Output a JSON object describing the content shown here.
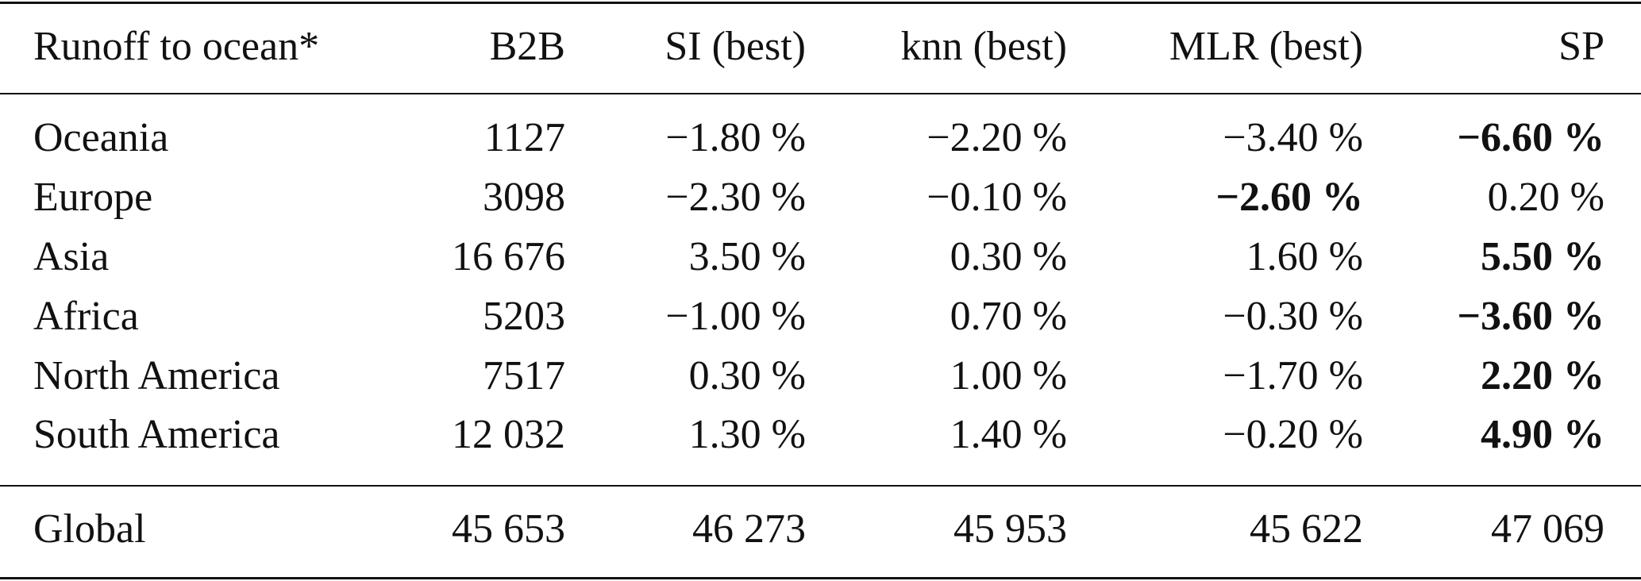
{
  "table": {
    "header": [
      "Runoff to ocean*",
      "B2B",
      "SI (best)",
      "knn (best)",
      "MLR (best)",
      "SP"
    ],
    "rows": [
      [
        "Oceania",
        "1127",
        "−1.80 %",
        "−2.20 %",
        "−3.40 %",
        {
          "text": "−6.60 %",
          "bold": true
        }
      ],
      [
        "Europe",
        "3098",
        "−2.30 %",
        "−0.10 %",
        {
          "text": "−2.60 %",
          "bold": true
        },
        "0.20 %"
      ],
      [
        "Asia",
        "16 676",
        "3.50 %",
        "0.30 %",
        "1.60 %",
        {
          "text": "5.50 %",
          "bold": true
        }
      ],
      [
        "Africa",
        "5203",
        "−1.00 %",
        "0.70 %",
        "−0.30 %",
        {
          "text": "−3.60 %",
          "bold": true
        }
      ],
      [
        "North America",
        "7517",
        "0.30 %",
        "1.00 %",
        "−1.70 %",
        {
          "text": "2.20 %",
          "bold": true
        }
      ],
      [
        "South America",
        "12 032",
        "1.30 %",
        "1.40 %",
        "−0.20 %",
        {
          "text": "4.90 %",
          "bold": true
        }
      ]
    ],
    "footer": [
      "Global",
      "45 653",
      "46 273",
      "45 953",
      "45 622",
      "47 069"
    ]
  }
}
